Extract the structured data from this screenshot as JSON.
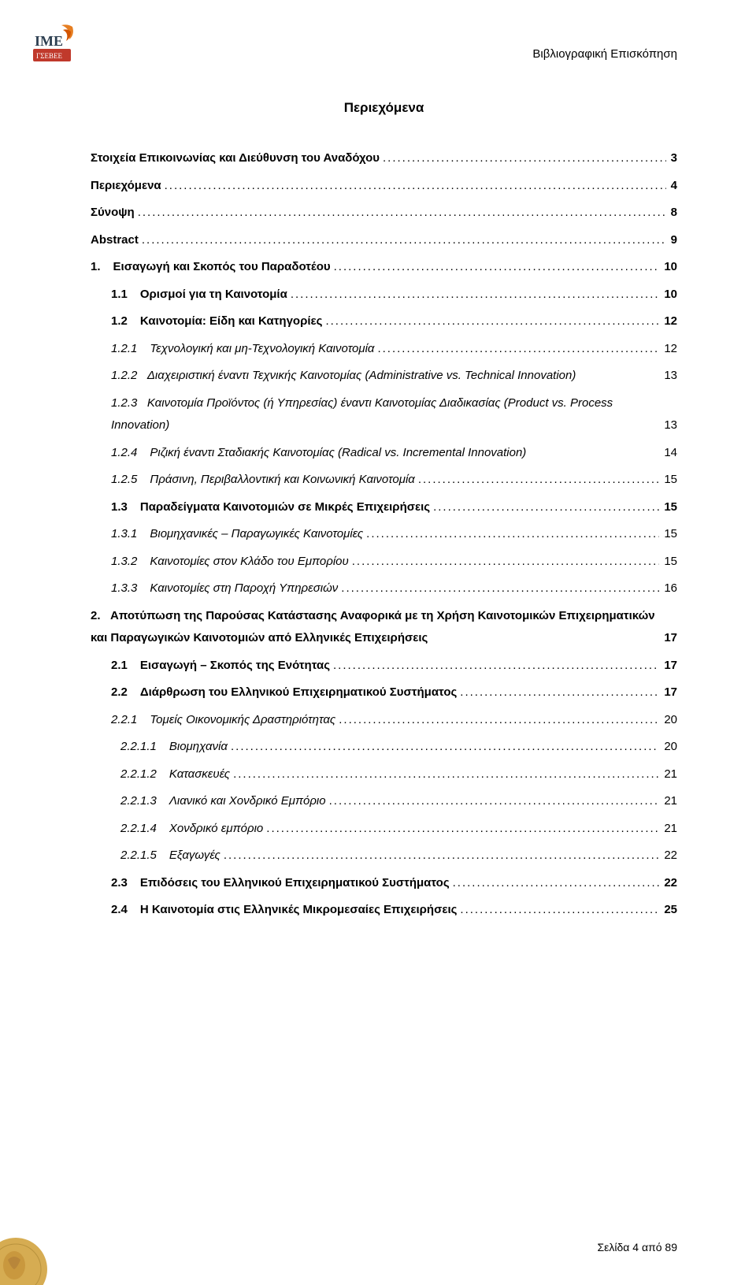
{
  "header": {
    "running_title": "Βιβλιογραφική Επισκόπηση"
  },
  "logo": {
    "text_top": "IME",
    "text_bottom": "ΓΣΕΒΕΕ",
    "box_color": "#c0392b",
    "flame_color": "#e67e22"
  },
  "title": "Περιεχόμενα",
  "toc": [
    {
      "num": "",
      "text": "Στοιχεία Επικοινωνίας και Διεύθυνση του Αναδόχου",
      "page": "3",
      "bold": true,
      "indent": 0
    },
    {
      "num": "",
      "text": "Περιεχόμενα",
      "page": "4",
      "bold": true,
      "indent": 0
    },
    {
      "num": "",
      "text": "Σύνοψη",
      "page": "8",
      "bold": true,
      "indent": 0
    },
    {
      "num": "",
      "text": "Abstract",
      "page": "9",
      "bold": true,
      "indent": 0
    },
    {
      "num": "1.",
      "text": "Εισαγωγή και Σκοπός του Παραδοτέου",
      "page": "10",
      "bold": true,
      "indent": 0
    },
    {
      "num": "1.1",
      "text": "Ορισμοί για τη Καινοτομία",
      "page": "10",
      "bold": true,
      "indent": 1
    },
    {
      "num": "1.2",
      "text": "Καινοτομία: Είδη και Κατηγορίες",
      "page": "12",
      "bold": true,
      "indent": 1
    },
    {
      "num": "1.2.1",
      "text": "Τεχνολογική και μη-Τεχνολογική Καινοτομία",
      "page": "12",
      "italic": true,
      "indent": 1
    },
    {
      "num": "1.2.2",
      "text": "Διαχειριστική έναντι Τεχνικής Καινοτομίας (Administrative vs. Technical Innovation)",
      "page": "13",
      "italic": true,
      "indent": 1,
      "wrap": true
    },
    {
      "num": "1.2.3",
      "text": "Καινοτομία Προϊόντος (ή Υπηρεσίας) έναντι Καινοτομίας Διαδικασίας (Product vs. Process Innovation)",
      "page": "13",
      "italic": true,
      "indent": 1,
      "wrap": true
    },
    {
      "num": "1.2.4",
      "text": "Ριζική έναντι Σταδιακής Καινοτομίας (Radical vs. Incremental Innovation)",
      "page": "14",
      "italic": true,
      "indent": 1,
      "nolead": true
    },
    {
      "num": "1.2.5",
      "text": "Πράσινη, Περιβαλλοντική και Κοινωνική Καινοτομία",
      "page": "15",
      "italic": true,
      "indent": 1
    },
    {
      "num": "1.3",
      "text": "Παραδείγματα Καινοτομιών σε Μικρές Επιχειρήσεις",
      "page": "15",
      "bold": true,
      "indent": 1
    },
    {
      "num": "1.3.1",
      "text": "Βιομηχανικές – Παραγωγικές Καινοτομίες",
      "page": "15",
      "italic": true,
      "indent": 1
    },
    {
      "num": "1.3.2",
      "text": "Καινοτομίες στον Κλάδο του Εμπορίου",
      "page": "15",
      "italic": true,
      "indent": 1
    },
    {
      "num": "1.3.3",
      "text": "Καινοτομίες στη Παροχή Υπηρεσιών",
      "page": "16",
      "italic": true,
      "indent": 1
    },
    {
      "num": "2.",
      "text": "Αποτύπωση της Παρούσας Κατάστασης Αναφορικά με τη Χρήση Καινοτομικών Επιχειρηματικών και Παραγωγικών Καινοτομιών από Ελληνικές Επιχειρήσεις",
      "page": "17",
      "bold": true,
      "indent": 0,
      "wrap": true,
      "multiwrap": true
    },
    {
      "num": "2.1",
      "text": "Εισαγωγή – Σκοπός της Ενότητας",
      "page": "17",
      "bold": true,
      "indent": 1
    },
    {
      "num": "2.2",
      "text": "Διάρθρωση του Ελληνικού Επιχειρηματικού Συστήματος",
      "page": "17",
      "bold": true,
      "indent": 1
    },
    {
      "num": "2.2.1",
      "text": "Τομείς Οικονομικής Δραστηριότητας",
      "page": "20",
      "italic": true,
      "indent": 1
    },
    {
      "num": "2.2.1.1",
      "text": "Βιομηχανία",
      "page": "20",
      "italic": true,
      "indent": 2
    },
    {
      "num": "2.2.1.2",
      "text": "Κατασκευές",
      "page": "21",
      "italic": true,
      "indent": 2
    },
    {
      "num": "2.2.1.3",
      "text": "Λιανικό και Χονδρικό Εμπόριο",
      "page": "21",
      "italic": true,
      "indent": 2
    },
    {
      "num": "2.2.1.4",
      "text": "Χονδρικό εμπόριο",
      "page": "21",
      "italic": true,
      "indent": 2
    },
    {
      "num": "2.2.1.5",
      "text": "Εξαγωγές",
      "page": "22",
      "italic": true,
      "indent": 2
    },
    {
      "num": "2.3",
      "text": "Επιδόσεις του Ελληνικού Επιχειρηματικού Συστήματος",
      "page": "22",
      "bold": true,
      "indent": 1
    },
    {
      "num": "2.4",
      "text": "Η Καινοτομία στις Ελληνικές Μικρομεσαίες Επιχειρήσεις",
      "page": "25",
      "bold": true,
      "indent": 1
    }
  ],
  "footer": {
    "prefix": "Σελίδα",
    "page": "4",
    "of_word": "από",
    "total": "89"
  }
}
